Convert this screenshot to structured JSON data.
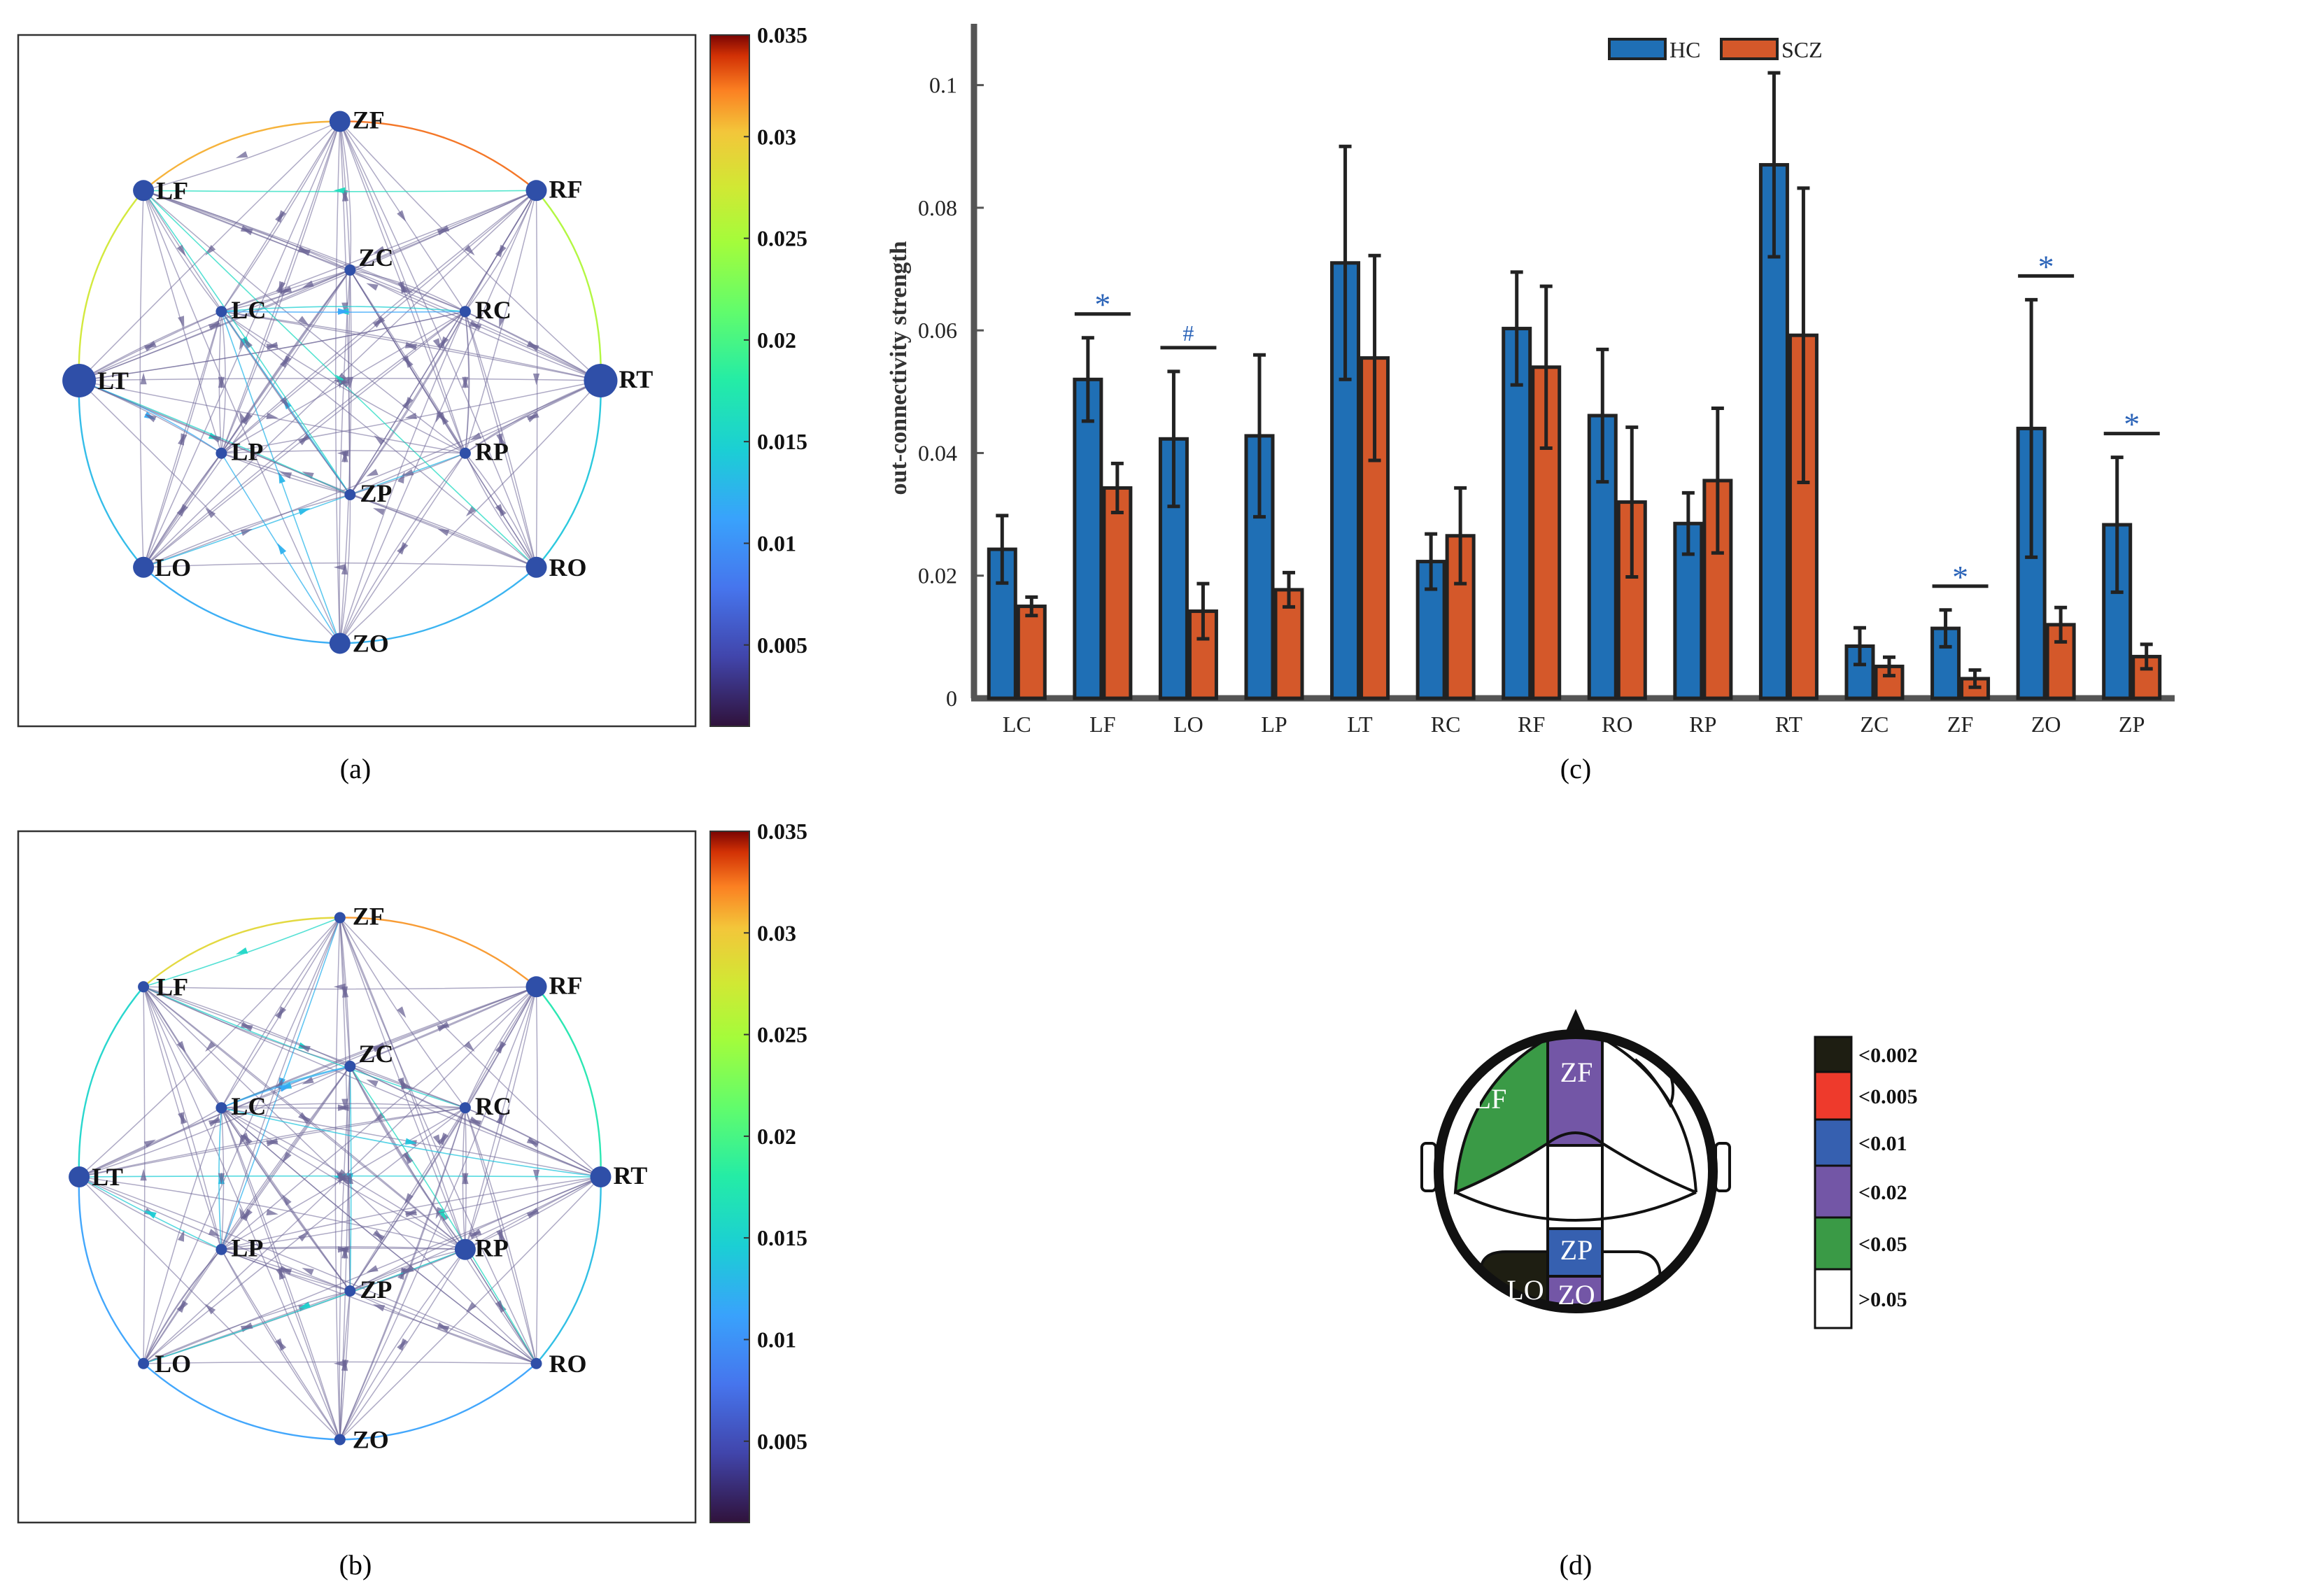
{
  "panels": {
    "a": {
      "caption": "(a)",
      "colorbar_ticks": [
        "0.035",
        "0.03",
        "0.025",
        "0.02",
        "0.015",
        "0.01",
        "0.005"
      ],
      "colorbar_tick_values": [
        0.035,
        0.03,
        0.025,
        0.02,
        0.015,
        0.01,
        0.005
      ],
      "colorbar_range": [
        0.001,
        0.035
      ],
      "nodes": [
        {
          "label": "ZF",
          "rel": "large"
        },
        {
          "label": "RF",
          "rel": "large"
        },
        {
          "label": "RT",
          "rel": "xlarge"
        },
        {
          "label": "RO",
          "rel": "large"
        },
        {
          "label": "ZO",
          "rel": "large"
        },
        {
          "label": "LO",
          "rel": "large"
        },
        {
          "label": "LT",
          "rel": "xlarge"
        },
        {
          "label": "LF",
          "rel": "large"
        },
        {
          "label": "ZC",
          "rel": "small"
        },
        {
          "label": "RC",
          "rel": "small"
        },
        {
          "label": "RP",
          "rel": "small"
        },
        {
          "label": "ZP",
          "rel": "small"
        },
        {
          "label": "LP",
          "rel": "small"
        },
        {
          "label": "LC",
          "rel": "small"
        }
      ]
    },
    "b": {
      "caption": "(b)",
      "colorbar_ticks": [
        "0.035",
        "0.03",
        "0.025",
        "0.02",
        "0.015",
        "0.01",
        "0.005"
      ],
      "colorbar_tick_values": [
        0.035,
        0.03,
        0.025,
        0.02,
        0.015,
        0.01,
        0.005
      ],
      "colorbar_range": [
        0.001,
        0.035
      ],
      "nodes": [
        {
          "label": "ZF",
          "rel": "small"
        },
        {
          "label": "RF",
          "rel": "large"
        },
        {
          "label": "RT",
          "rel": "large"
        },
        {
          "label": "RO",
          "rel": "small"
        },
        {
          "label": "ZO",
          "rel": "small"
        },
        {
          "label": "LO",
          "rel": "small"
        },
        {
          "label": "LT",
          "rel": "large"
        },
        {
          "label": "LF",
          "rel": "small"
        },
        {
          "label": "ZC",
          "rel": "small"
        },
        {
          "label": "RC",
          "rel": "small"
        },
        {
          "label": "RP",
          "rel": "large"
        },
        {
          "label": "ZP",
          "rel": "small"
        },
        {
          "label": "LP",
          "rel": "small"
        },
        {
          "label": "LC",
          "rel": "small"
        }
      ]
    },
    "c": {
      "caption": "(c)"
    },
    "d": {
      "caption": "(d)",
      "regions": [
        {
          "label": "LF",
          "color": "#3a9a46"
        },
        {
          "label": "ZF",
          "color": "#7356a6"
        },
        {
          "label": "ZP",
          "color": "#3660b0"
        },
        {
          "label": "LO",
          "color": "#1e1e12"
        },
        {
          "label": "ZO",
          "color": "#7356a6"
        }
      ],
      "legend": [
        {
          "label": "<0.002",
          "color": "#1e1e12"
        },
        {
          "label": "<0.005",
          "color": "#ee3a2c"
        },
        {
          "label": "<0.01",
          "color": "#3660b0"
        },
        {
          "label": "<0.02",
          "color": "#7356a6"
        },
        {
          "label": "<0.05",
          "color": "#3a9a46"
        },
        {
          "label": ">0.05",
          "color": "#ffffff"
        }
      ]
    }
  },
  "colors": {
    "hc": "#1f6fb5",
    "scz": "#d4582a",
    "node": "#2f4fa8",
    "sig_marker": "#2a63b8",
    "edge_base": "#6b6496"
  },
  "chart_data": {
    "type": "bar",
    "ylabel": "out-connectivity strength",
    "xlabel": "",
    "ylim": [
      0,
      0.11
    ],
    "yticks": [
      0,
      0.02,
      0.04,
      0.06,
      0.08,
      0.1
    ],
    "ytick_labels": [
      "0",
      "0.02",
      "0.04",
      "0.06",
      "0.08",
      "0.1"
    ],
    "legend_position": "top",
    "grid": false,
    "categories": [
      "LC",
      "LF",
      "LO",
      "LP",
      "LT",
      "RC",
      "RF",
      "RO",
      "RP",
      "RT",
      "ZC",
      "ZF",
      "ZO",
      "ZP"
    ],
    "series": [
      {
        "name": "HC",
        "values": [
          0.0243,
          0.052,
          0.0423,
          0.0428,
          0.071,
          0.0223,
          0.0603,
          0.0461,
          0.0285,
          0.087,
          0.0085,
          0.0114,
          0.044,
          0.0283
        ],
        "error": [
          0.0055,
          0.0068,
          0.011,
          0.0132,
          0.019,
          0.0045,
          0.0092,
          0.0108,
          0.005,
          0.015,
          0.003,
          0.003,
          0.021,
          0.011
        ]
      },
      {
        "name": "SCZ",
        "values": [
          0.015,
          0.0343,
          0.0142,
          0.0177,
          0.0555,
          0.0265,
          0.054,
          0.032,
          0.0355,
          0.0592,
          0.0052,
          0.0032,
          0.012,
          0.0068
        ],
        "error": [
          0.0015,
          0.004,
          0.0045,
          0.0028,
          0.0167,
          0.0078,
          0.0132,
          0.0122,
          0.0118,
          0.024,
          0.0015,
          0.0014,
          0.0028,
          0.002
        ]
      }
    ],
    "significance": [
      {
        "category": "LF",
        "marker": "*"
      },
      {
        "category": "LO",
        "marker": "#"
      },
      {
        "category": "ZF",
        "marker": "*"
      },
      {
        "category": "ZO",
        "marker": "*"
      },
      {
        "category": "ZP",
        "marker": "*"
      }
    ]
  }
}
